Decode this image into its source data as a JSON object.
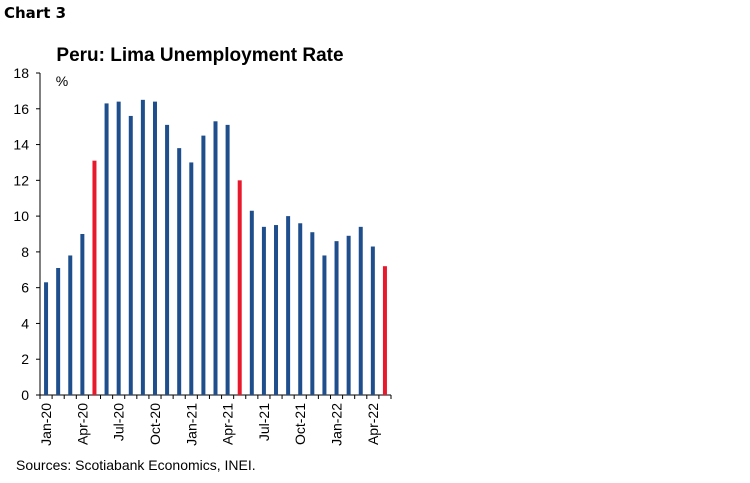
{
  "header": {
    "chart_label": "Chart 3"
  },
  "source": "Sources: Scotiabank Economics, INEI.",
  "colors": {
    "bar": "#1f4e8c",
    "highlight": "#e8192c",
    "axis": "#000000"
  },
  "chart_data": {
    "type": "bar",
    "title": "Peru: Lima Unemployment Rate",
    "unit_label": "%",
    "xlabel": "",
    "ylabel": "",
    "ylim": [
      0,
      18
    ],
    "yticks": [
      0,
      2,
      4,
      6,
      8,
      10,
      12,
      14,
      16,
      18
    ],
    "grid": false,
    "categories": [
      "Jan-20",
      "Feb-20",
      "Mar-20",
      "Apr-20",
      "May-20",
      "Jun-20",
      "Jul-20",
      "Aug-20",
      "Sep-20",
      "Oct-20",
      "Nov-20",
      "Dec-20",
      "Jan-21",
      "Feb-21",
      "Mar-21",
      "Apr-21",
      "May-21",
      "Jun-21",
      "Jul-21",
      "Aug-21",
      "Sep-21",
      "Oct-21",
      "Nov-21",
      "Dec-21",
      "Jan-22",
      "Feb-22",
      "Mar-22",
      "Apr-22",
      "May-22"
    ],
    "tick_labels": [
      "Jan-20",
      "",
      "",
      "Apr-20",
      "",
      "",
      "Jul-20",
      "",
      "",
      "Oct-20",
      "",
      "",
      "Jan-21",
      "",
      "",
      "Apr-21",
      "",
      "",
      "Jul-21",
      "",
      "",
      "Oct-21",
      "",
      "",
      "Jan-22",
      "",
      "",
      "Apr-22",
      ""
    ],
    "values": [
      6.3,
      7.1,
      7.8,
      9.0,
      13.1,
      16.3,
      16.4,
      15.6,
      16.5,
      16.4,
      15.1,
      13.8,
      13.0,
      14.5,
      15.3,
      15.1,
      12.0,
      10.3,
      9.4,
      9.5,
      10.0,
      9.6,
      9.1,
      7.8,
      8.6,
      8.9,
      9.4,
      8.3,
      7.2
    ],
    "highlighted": [
      "May-20",
      "May-21",
      "May-22"
    ]
  }
}
